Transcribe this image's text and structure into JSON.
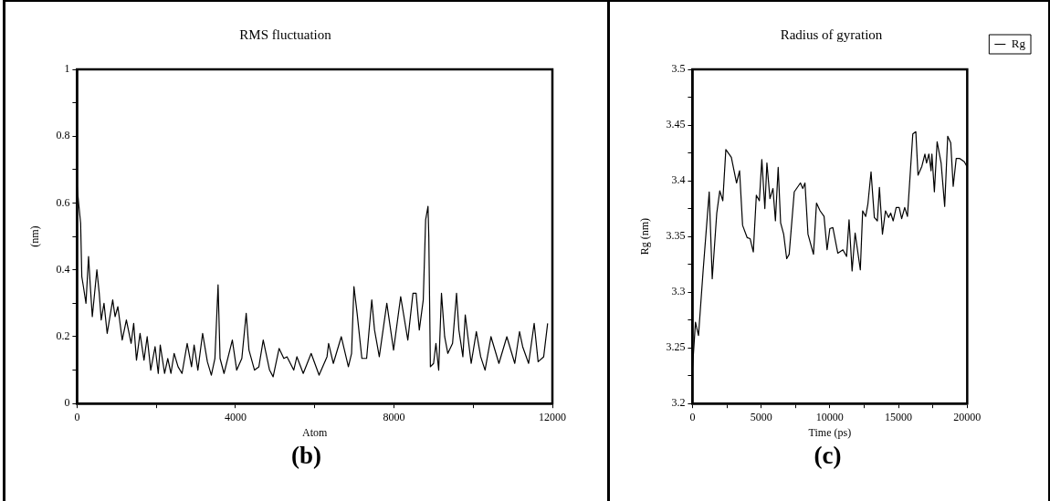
{
  "chart_data": [
    {
      "type": "line",
      "title": "RMS fluctuation",
      "xlabel": "Atom",
      "ylabel": "(nm)",
      "annotations": [
        "(b)"
      ],
      "xlim": [
        0,
        12000
      ],
      "xticks": [
        0,
        {
          "value": 2000,
          "label": null
        },
        4000,
        {
          "value": 6000,
          "label": null
        },
        8000,
        {
          "value": 10000,
          "label": null
        },
        12000
      ],
      "ylim": [
        0,
        1
      ],
      "yticks": [
        0,
        {
          "value": 0.1,
          "label": null
        },
        0.2,
        {
          "value": 0.3,
          "label": null
        },
        0.4,
        {
          "value": 0.5,
          "label": null
        },
        0.6,
        {
          "value": 0.7,
          "label": null
        },
        0.8,
        {
          "value": 0.9,
          "label": null
        },
        1
      ],
      "series": [
        {
          "color": "#000000",
          "x": [
            0,
            40,
            90,
            120,
            160,
            225,
            290,
            330,
            385,
            500,
            560,
            610,
            680,
            760,
            900,
            960,
            1030,
            1140,
            1245,
            1365,
            1430,
            1500,
            1590,
            1690,
            1770,
            1860,
            1970,
            2050,
            2100,
            2210,
            2290,
            2370,
            2450,
            2550,
            2650,
            2780,
            2890,
            2955,
            3050,
            3170,
            3290,
            3390,
            3480,
            3560,
            3610,
            3710,
            3920,
            4030,
            4160,
            4270,
            4340,
            4480,
            4590,
            4700,
            4860,
            4950,
            5100,
            5220,
            5300,
            5470,
            5550,
            5710,
            5910,
            6110,
            6310,
            6350,
            6470,
            6670,
            6850,
            6930,
            6990,
            7070,
            7190,
            7310,
            7440,
            7510,
            7630,
            7820,
            7990,
            8170,
            8350,
            8480,
            8560,
            8640,
            8740,
            8800,
            8860,
            8880,
            8920,
            9000,
            9060,
            9130,
            9200,
            9280,
            9360,
            9480,
            9580,
            9640,
            9740,
            9800,
            9950,
            10080,
            10190,
            10300,
            10450,
            10650,
            10850,
            11050,
            11170,
            11250,
            11400,
            11540,
            11640,
            11780,
            11880
          ],
          "values": [
            0.65,
            0.6,
            0.54,
            0.38,
            0.35,
            0.3,
            0.44,
            0.36,
            0.26,
            0.4,
            0.33,
            0.25,
            0.3,
            0.21,
            0.31,
            0.26,
            0.29,
            0.19,
            0.25,
            0.18,
            0.24,
            0.13,
            0.21,
            0.13,
            0.2,
            0.1,
            0.17,
            0.09,
            0.175,
            0.09,
            0.135,
            0.09,
            0.15,
            0.11,
            0.09,
            0.18,
            0.11,
            0.175,
            0.1,
            0.21,
            0.125,
            0.085,
            0.135,
            0.355,
            0.135,
            0.09,
            0.19,
            0.1,
            0.135,
            0.27,
            0.16,
            0.1,
            0.11,
            0.19,
            0.1,
            0.08,
            0.165,
            0.135,
            0.14,
            0.1,
            0.14,
            0.09,
            0.15,
            0.085,
            0.14,
            0.18,
            0.12,
            0.2,
            0.11,
            0.15,
            0.35,
            0.27,
            0.135,
            0.135,
            0.31,
            0.22,
            0.14,
            0.3,
            0.16,
            0.32,
            0.19,
            0.33,
            0.33,
            0.22,
            0.31,
            0.55,
            0.59,
            0.5,
            0.11,
            0.12,
            0.18,
            0.1,
            0.33,
            0.2,
            0.15,
            0.18,
            0.33,
            0.22,
            0.14,
            0.265,
            0.12,
            0.215,
            0.14,
            0.1,
            0.2,
            0.12,
            0.2,
            0.12,
            0.215,
            0.17,
            0.12,
            0.24,
            0.125,
            0.14,
            0.24
          ]
        }
      ]
    },
    {
      "type": "line",
      "title": "Radius of gyration",
      "xlabel": "Time (ps)",
      "ylabel": "Rg (nm)",
      "annotations": [
        "(c)"
      ],
      "legend": "top right",
      "xlim": [
        0,
        20000
      ],
      "xticks": [
        0,
        {
          "value": 2500,
          "label": null
        },
        5000,
        {
          "value": 7500,
          "label": null
        },
        10000,
        {
          "value": 12500,
          "label": null
        },
        15000,
        {
          "value": 17500,
          "label": null
        },
        20000
      ],
      "ylim": [
        3.2,
        3.5
      ],
      "yticks": [
        3.2,
        {
          "value": 3.225,
          "label": null
        },
        3.25,
        {
          "value": 3.275,
          "label": null
        },
        3.3,
        {
          "value": 3.325,
          "label": null
        },
        3.35,
        {
          "value": 3.375,
          "label": null
        },
        3.4,
        {
          "value": 3.425,
          "label": null
        },
        3.45,
        {
          "value": 3.475,
          "label": null
        },
        3.5
      ],
      "series": [
        {
          "name": "Rg",
          "color": "#000000",
          "x": [
            0,
            220,
            440,
            775,
            1220,
            1440,
            1770,
            1990,
            2210,
            2430,
            2830,
            3210,
            3430,
            3650,
            3980,
            4200,
            4430,
            4650,
            4870,
            5050,
            5270,
            5420,
            5640,
            5860,
            6040,
            6240,
            6420,
            6640,
            6860,
            7040,
            7410,
            7860,
            8030,
            8190,
            8410,
            8810,
            9030,
            9290,
            9580,
            9800,
            10000,
            10220,
            10580,
            10950,
            11220,
            11400,
            11620,
            11840,
            12220,
            12390,
            12610,
            12770,
            13000,
            13240,
            13460,
            13610,
            13830,
            14050,
            14280,
            14430,
            14610,
            14830,
            15050,
            15230,
            15450,
            15650,
            16040,
            16260,
            16420,
            16700,
            16920,
            17040,
            17210,
            17370,
            17430,
            17610,
            17810,
            18100,
            18360,
            18580,
            18800,
            18980,
            19200,
            19460,
            19790,
            19970
          ],
          "values": [
            3.231,
            3.273,
            3.261,
            3.319,
            3.39,
            3.312,
            3.371,
            3.391,
            3.382,
            3.428,
            3.421,
            3.398,
            3.409,
            3.36,
            3.349,
            3.348,
            3.336,
            3.387,
            3.382,
            3.419,
            3.375,
            3.416,
            3.384,
            3.393,
            3.364,
            3.412,
            3.362,
            3.352,
            3.33,
            3.334,
            3.39,
            3.398,
            3.393,
            3.398,
            3.352,
            3.334,
            3.38,
            3.373,
            3.368,
            3.338,
            3.357,
            3.358,
            3.335,
            3.338,
            3.332,
            3.365,
            3.319,
            3.353,
            3.32,
            3.373,
            3.368,
            3.379,
            3.408,
            3.367,
            3.364,
            3.394,
            3.352,
            3.373,
            3.367,
            3.371,
            3.364,
            3.376,
            3.376,
            3.366,
            3.376,
            3.368,
            3.442,
            3.444,
            3.405,
            3.413,
            3.424,
            3.416,
            3.424,
            3.409,
            3.424,
            3.39,
            3.435,
            3.416,
            3.377,
            3.44,
            3.434,
            3.395,
            3.42,
            3.42,
            3.417,
            3.413
          ]
        }
      ]
    }
  ]
}
